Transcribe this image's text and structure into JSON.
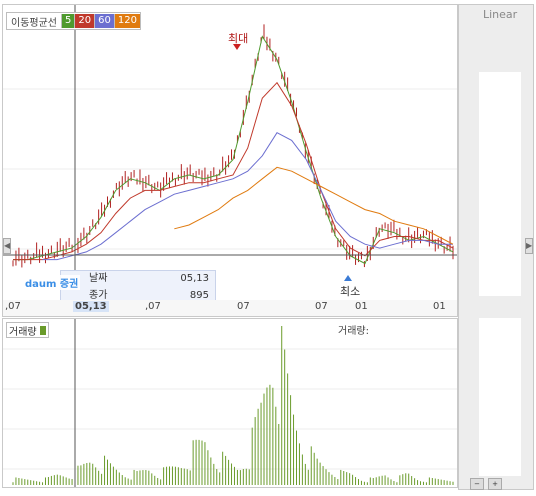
{
  "legend": {
    "title": "이동평균선",
    "items": [
      {
        "label": "5",
        "bg": "#4f9a2e",
        "fg": "#ffffff"
      },
      {
        "label": "20",
        "bg": "#c0392b",
        "fg": "#ffffff"
      },
      {
        "label": "60",
        "bg": "#6c6fd0",
        "fg": "#ffffff"
      },
      {
        "label": "120",
        "bg": "#e07b10",
        "fg": "#ffffff"
      }
    ]
  },
  "scale_mode": "Linear",
  "annotations": {
    "max_label": "최대",
    "min_label": "최소"
  },
  "tooltip": {
    "brand": "daum 증권",
    "date_label": "날짜",
    "date_value": "05,13",
    "close_label": "종가",
    "close_value": "895"
  },
  "x_axis_ticks": [
    {
      "label": ",07"
    },
    {
      "label": "05,13",
      "highlight": true
    },
    {
      "label": ",07"
    },
    {
      "label": "07"
    },
    {
      "label": "07"
    },
    {
      "label": "01"
    },
    {
      "label": "01"
    }
  ],
  "volume_panel": {
    "legend_label": "거래량",
    "crosshair_label": "거래량:"
  },
  "colors": {
    "ma5": "#4f9a2e",
    "ma20": "#c0392b",
    "ma60": "#6c6fd0",
    "ma120": "#e07b10",
    "price_bar": "#b02020",
    "volume_bar": "#6a9b2b",
    "crosshair": "#555555"
  },
  "chart_data": {
    "type": "line",
    "title": "",
    "series": [
      {
        "name": "5",
        "values": [
          0.04,
          0.04,
          0.05,
          0.06,
          0.07,
          0.1,
          0.15,
          0.22,
          0.25,
          0.24,
          0.22,
          0.25,
          0.26,
          0.25,
          0.26,
          0.3,
          0.45,
          0.62,
          0.56,
          0.45,
          0.32,
          0.2,
          0.1,
          0.05,
          0.03,
          0.12,
          0.11,
          0.09,
          0.1,
          0.08,
          0.06
        ]
      },
      {
        "name": "20",
        "values": [
          0.04,
          0.04,
          0.04,
          0.05,
          0.06,
          0.08,
          0.11,
          0.16,
          0.2,
          0.22,
          0.22,
          0.23,
          0.24,
          0.24,
          0.25,
          0.26,
          0.33,
          0.46,
          0.5,
          0.44,
          0.34,
          0.22,
          0.12,
          0.07,
          0.05,
          0.09,
          0.1,
          0.1,
          0.09,
          0.09,
          0.07
        ]
      },
      {
        "name": "60",
        "values": [
          null,
          null,
          0.04,
          0.04,
          0.05,
          0.06,
          0.08,
          0.11,
          0.14,
          0.17,
          0.19,
          0.21,
          0.22,
          0.23,
          0.24,
          0.25,
          0.27,
          0.31,
          0.37,
          0.35,
          0.3,
          0.22,
          0.14,
          0.1,
          0.08,
          0.07,
          0.08,
          0.09,
          0.09,
          0.08,
          0.08
        ]
      },
      {
        "name": "120",
        "values": [
          null,
          null,
          null,
          null,
          null,
          null,
          null,
          null,
          null,
          null,
          null,
          0.12,
          0.13,
          0.15,
          0.17,
          0.2,
          0.22,
          0.25,
          0.28,
          0.27,
          0.25,
          0.23,
          0.21,
          0.19,
          0.17,
          0.16,
          0.14,
          0.13,
          0.12,
          0.1,
          0.08
        ]
      }
    ],
    "volume": [
      1,
      1,
      1,
      1,
      2,
      2,
      3,
      5,
      4,
      3,
      2,
      2,
      3,
      2,
      3,
      4,
      6,
      8,
      5,
      4,
      3,
      6,
      14,
      26,
      20,
      12,
      6,
      4,
      3,
      2,
      2,
      1,
      1,
      2,
      1,
      2,
      1,
      1,
      1,
      1
    ]
  }
}
